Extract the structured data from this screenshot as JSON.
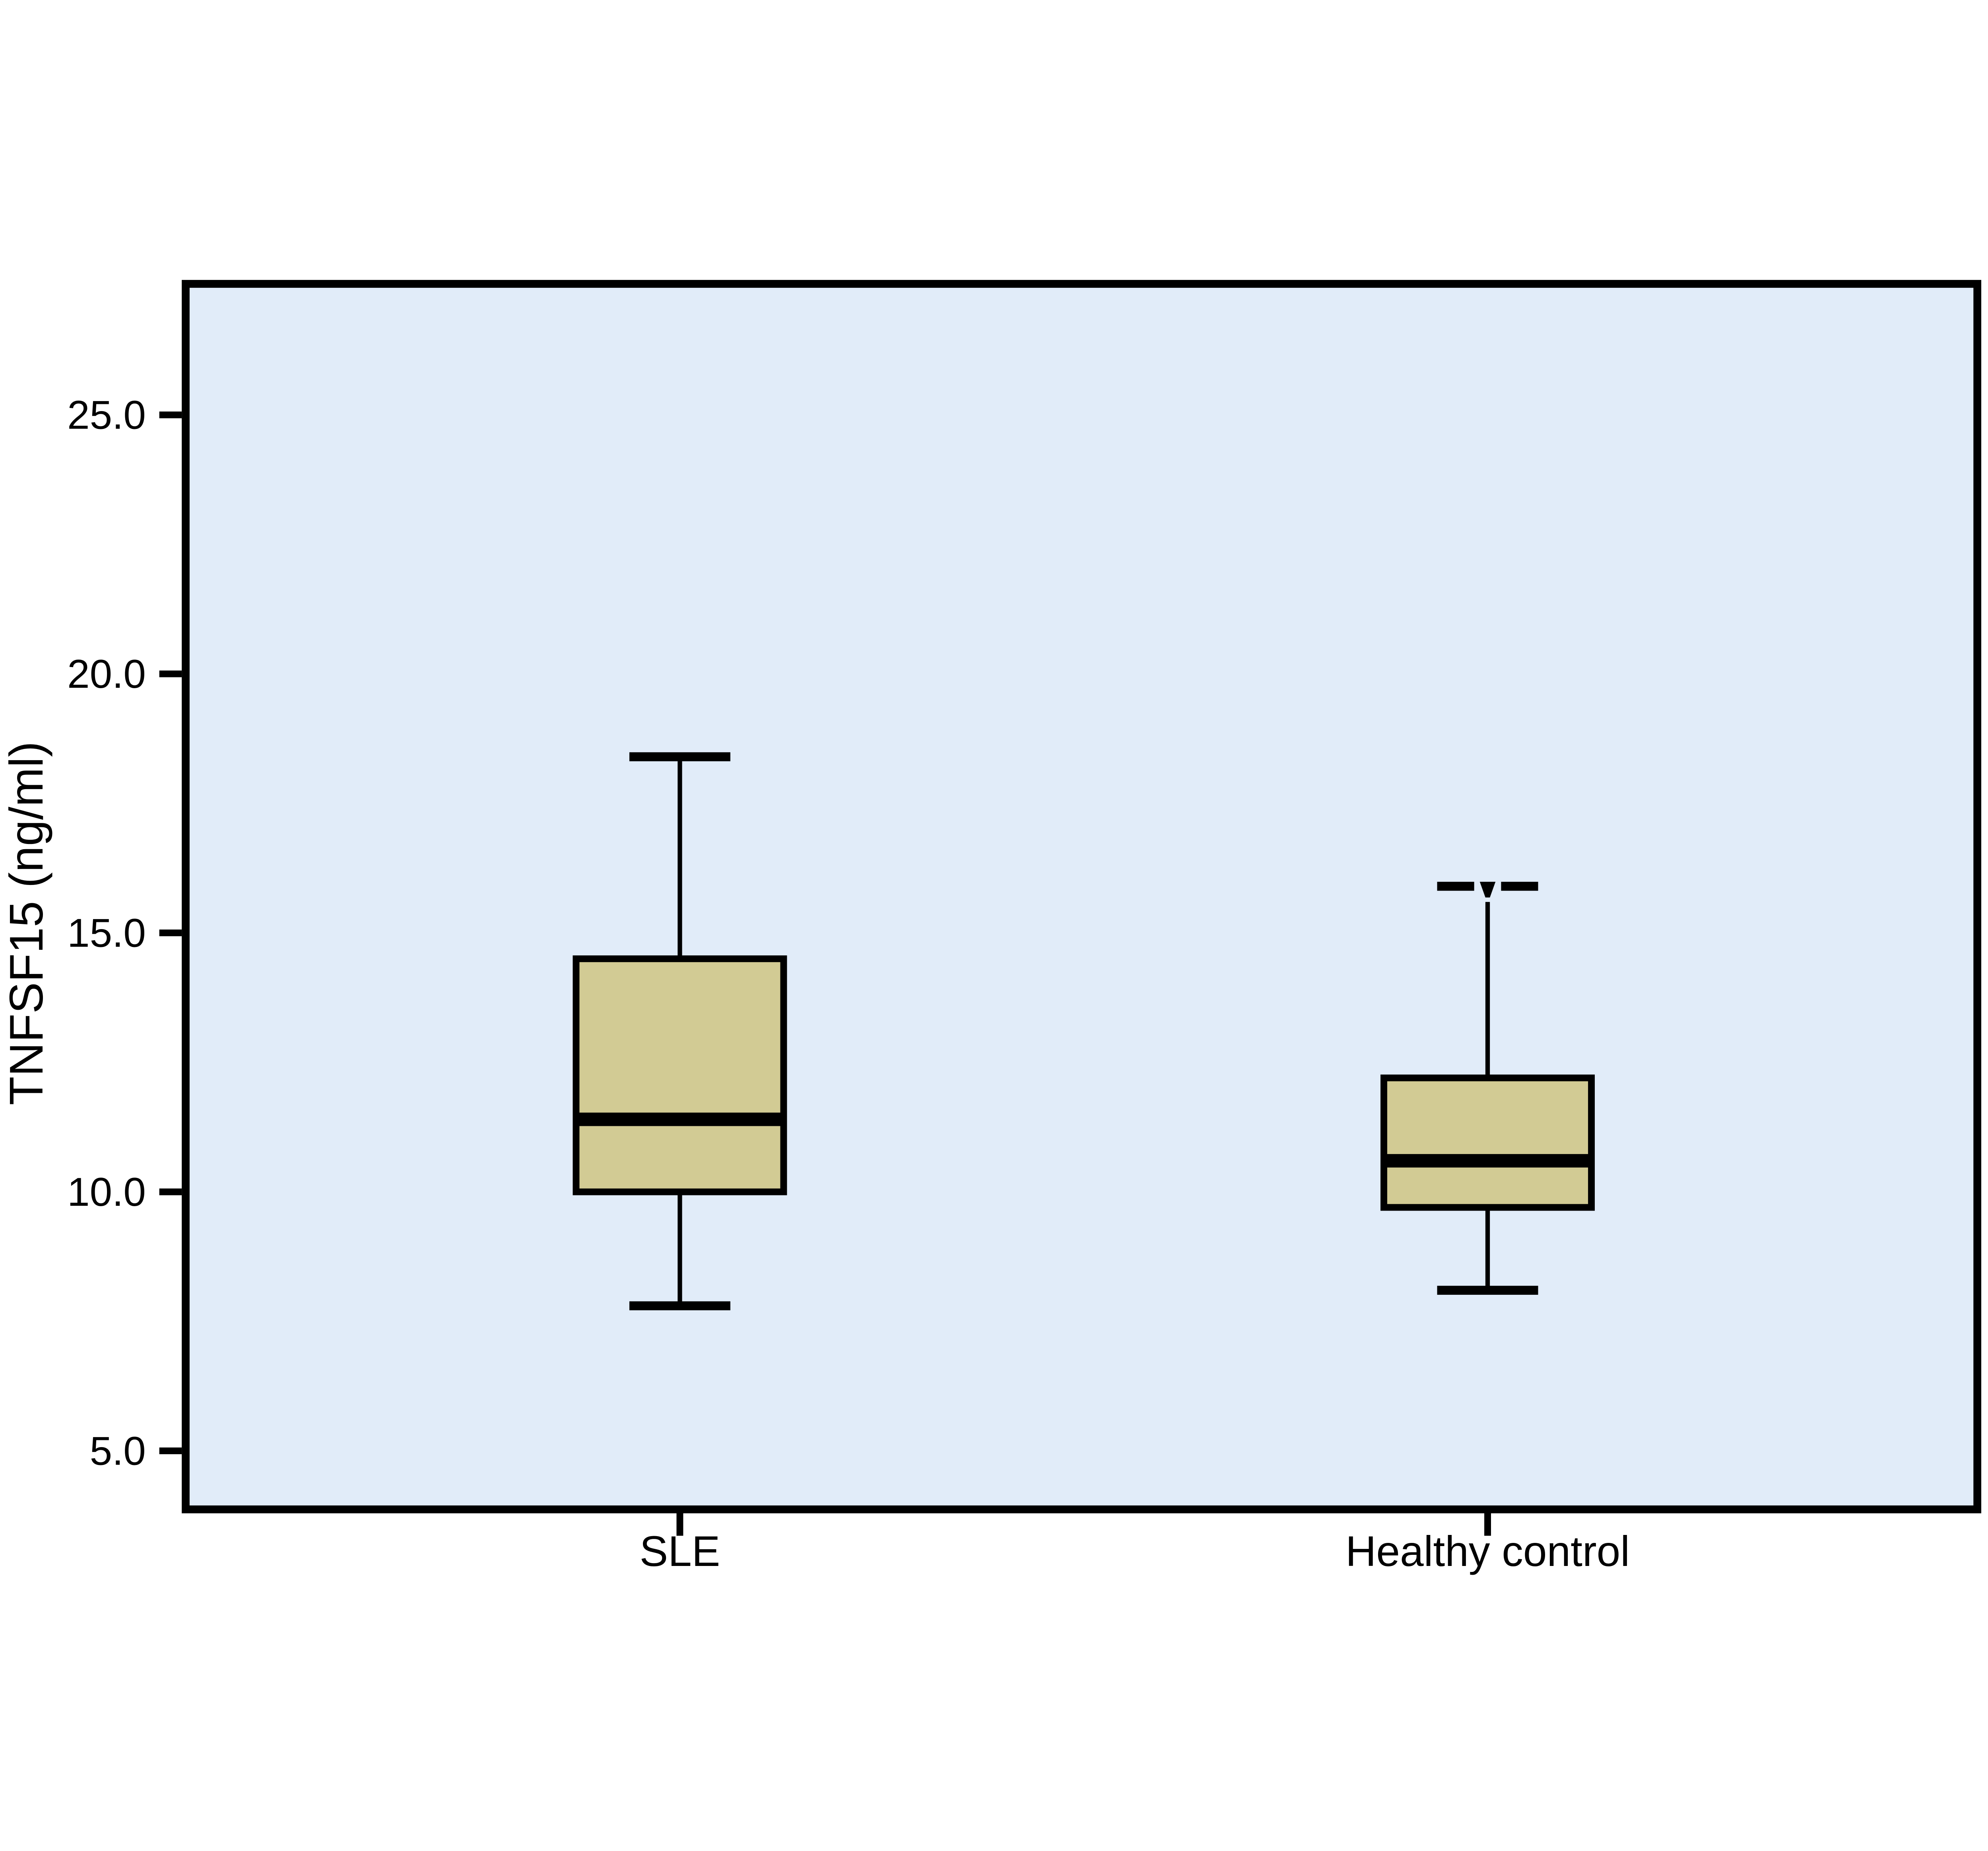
{
  "chart_data": {
    "type": "boxplot",
    "title": "",
    "ylabel": "TNFSF15 (ng/ml)",
    "xlabel": "",
    "categories": [
      "SLE",
      "Healthy control"
    ],
    "y_ticks": [
      25.0,
      20.0,
      15.0,
      10.0,
      5.0
    ],
    "y_tick_labels": [
      "25.0",
      "20.0",
      "15.0",
      "10.0",
      "5.0"
    ],
    "ylim": [
      3.87,
      27.53
    ],
    "grid": false,
    "legend_position": "none",
    "series": [
      {
        "label": "SLE",
        "whisker_low": 7.8,
        "q1": 10.0,
        "median": 11.4,
        "q3": 14.5,
        "whisker_high": 18.4,
        "top_cap_style": "plain"
      },
      {
        "label": "Healthy control",
        "whisker_low": 8.1,
        "q1": 9.7,
        "median": 10.6,
        "q3": 12.2,
        "whisker_high": 15.9,
        "top_cap_style": "notched"
      }
    ],
    "colors": {
      "box_fill": "#d2cb94",
      "panel_background": "#e1ecf9",
      "line": "#000000",
      "outer_background": "#ffffff"
    }
  }
}
